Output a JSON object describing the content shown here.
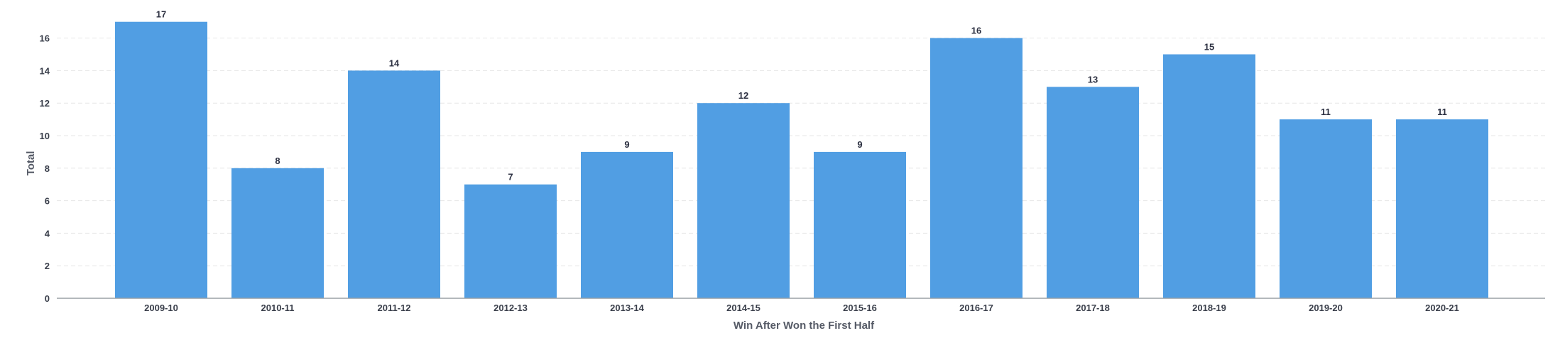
{
  "chart_data": {
    "type": "bar",
    "categories": [
      "2009-10",
      "2010-11",
      "2011-12",
      "2012-13",
      "2013-14",
      "2014-15",
      "2015-16",
      "2016-17",
      "2017-18",
      "2018-19",
      "2019-20",
      "2020-21"
    ],
    "values": [
      17,
      8,
      14,
      7,
      9,
      12,
      9,
      16,
      13,
      15,
      11,
      11
    ],
    "title": "",
    "xlabel": "Win After Won the First Half",
    "ylabel": "Total",
    "ylim": [
      0,
      17
    ],
    "yticks": [
      0,
      2,
      4,
      6,
      8,
      10,
      12,
      14,
      16
    ],
    "grid": true,
    "bar_color": "#519ee3",
    "grid_color": "#e6e6e6",
    "axis_color": "#9aa0a6"
  }
}
